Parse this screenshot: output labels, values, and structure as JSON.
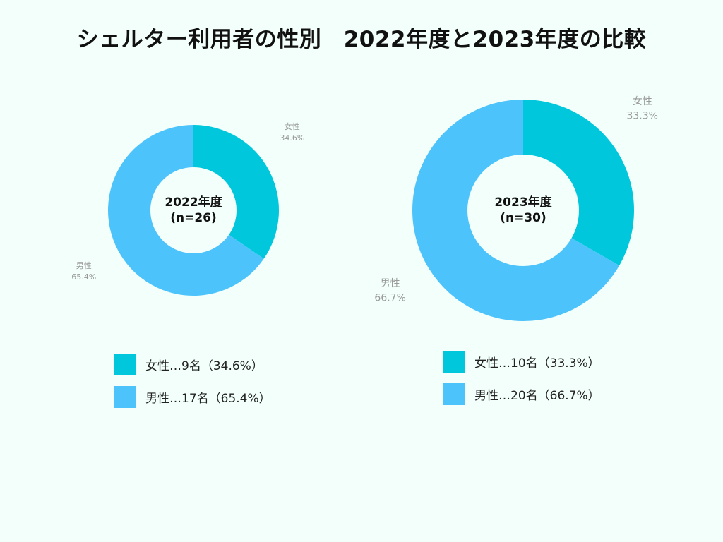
{
  "title": "シェルター利用者の性別　2022年度と2023年度の比較",
  "colors": {
    "female": "#00c7db",
    "male": "#4dc3fb",
    "background": "#f2fffa",
    "label_gray": "#999999"
  },
  "chart_data": [
    {
      "type": "pie",
      "center_label": [
        "2022年度",
        "(n=26)"
      ],
      "series": [
        {
          "name": "女性",
          "value": 34.6,
          "count": 9,
          "label_pct": "34.6%"
        },
        {
          "name": "男性",
          "value": 65.4,
          "count": 17,
          "label_pct": "65.4%"
        }
      ],
      "legend": [
        "女性…9名（34.6%）",
        "男性…17名（65.4%）"
      ]
    },
    {
      "type": "pie",
      "center_label": [
        "2023年度",
        "(n=30)"
      ],
      "series": [
        {
          "name": "女性",
          "value": 33.3,
          "count": 10,
          "label_pct": "33.3%"
        },
        {
          "name": "男性",
          "value": 66.7,
          "count": 20,
          "label_pct": "66.7%"
        }
      ],
      "legend": [
        "女性…10名（33.3%）",
        "男性…20名（66.7%）"
      ]
    }
  ]
}
